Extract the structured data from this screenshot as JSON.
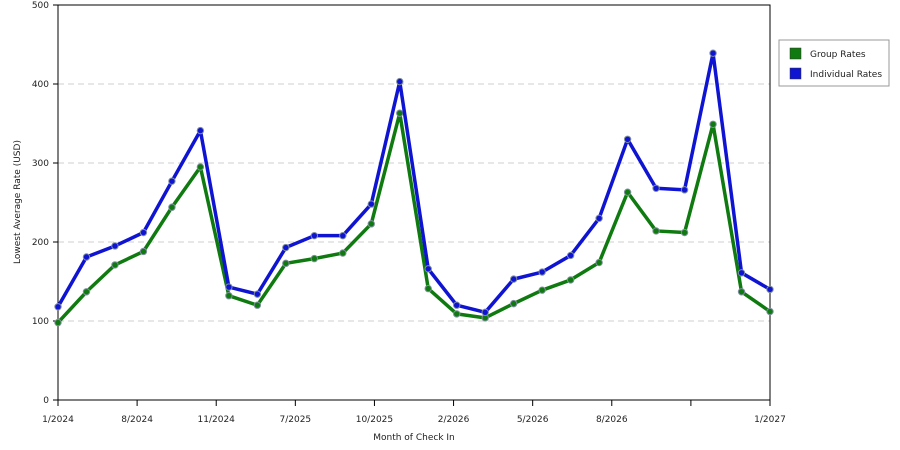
{
  "chart_data": {
    "type": "line",
    "xlabel": "Month of Check In",
    "ylabel": "Lowest Average Rate (USD)",
    "ylim": [
      0,
      500
    ],
    "yticks": [
      0,
      100,
      200,
      300,
      400,
      500
    ],
    "grid": true,
    "legend": "right",
    "x_tick_labels": [
      "1/2024",
      "8/2024",
      "11/2024",
      "7/2025",
      "10/2025",
      "2/2026",
      "5/2026",
      "8/2026",
      "",
      "1/2027"
    ],
    "series": [
      {
        "name": "Group Rates",
        "color": "#0f7a0f",
        "values": [
          98,
          137,
          171,
          188,
          244,
          295,
          132,
          120,
          173,
          179,
          186,
          223,
          363,
          141,
          109,
          104,
          122,
          139,
          152,
          174,
          263,
          214,
          212,
          349,
          137,
          112
        ]
      },
      {
        "name": "Individual Rates",
        "color": "#0f14d2",
        "values": [
          118,
          181,
          195,
          212,
          277,
          341,
          143,
          134,
          193,
          208,
          208,
          248,
          403,
          166,
          120,
          111,
          153,
          162,
          183,
          230,
          330,
          268,
          266,
          439,
          161,
          140
        ]
      }
    ]
  }
}
